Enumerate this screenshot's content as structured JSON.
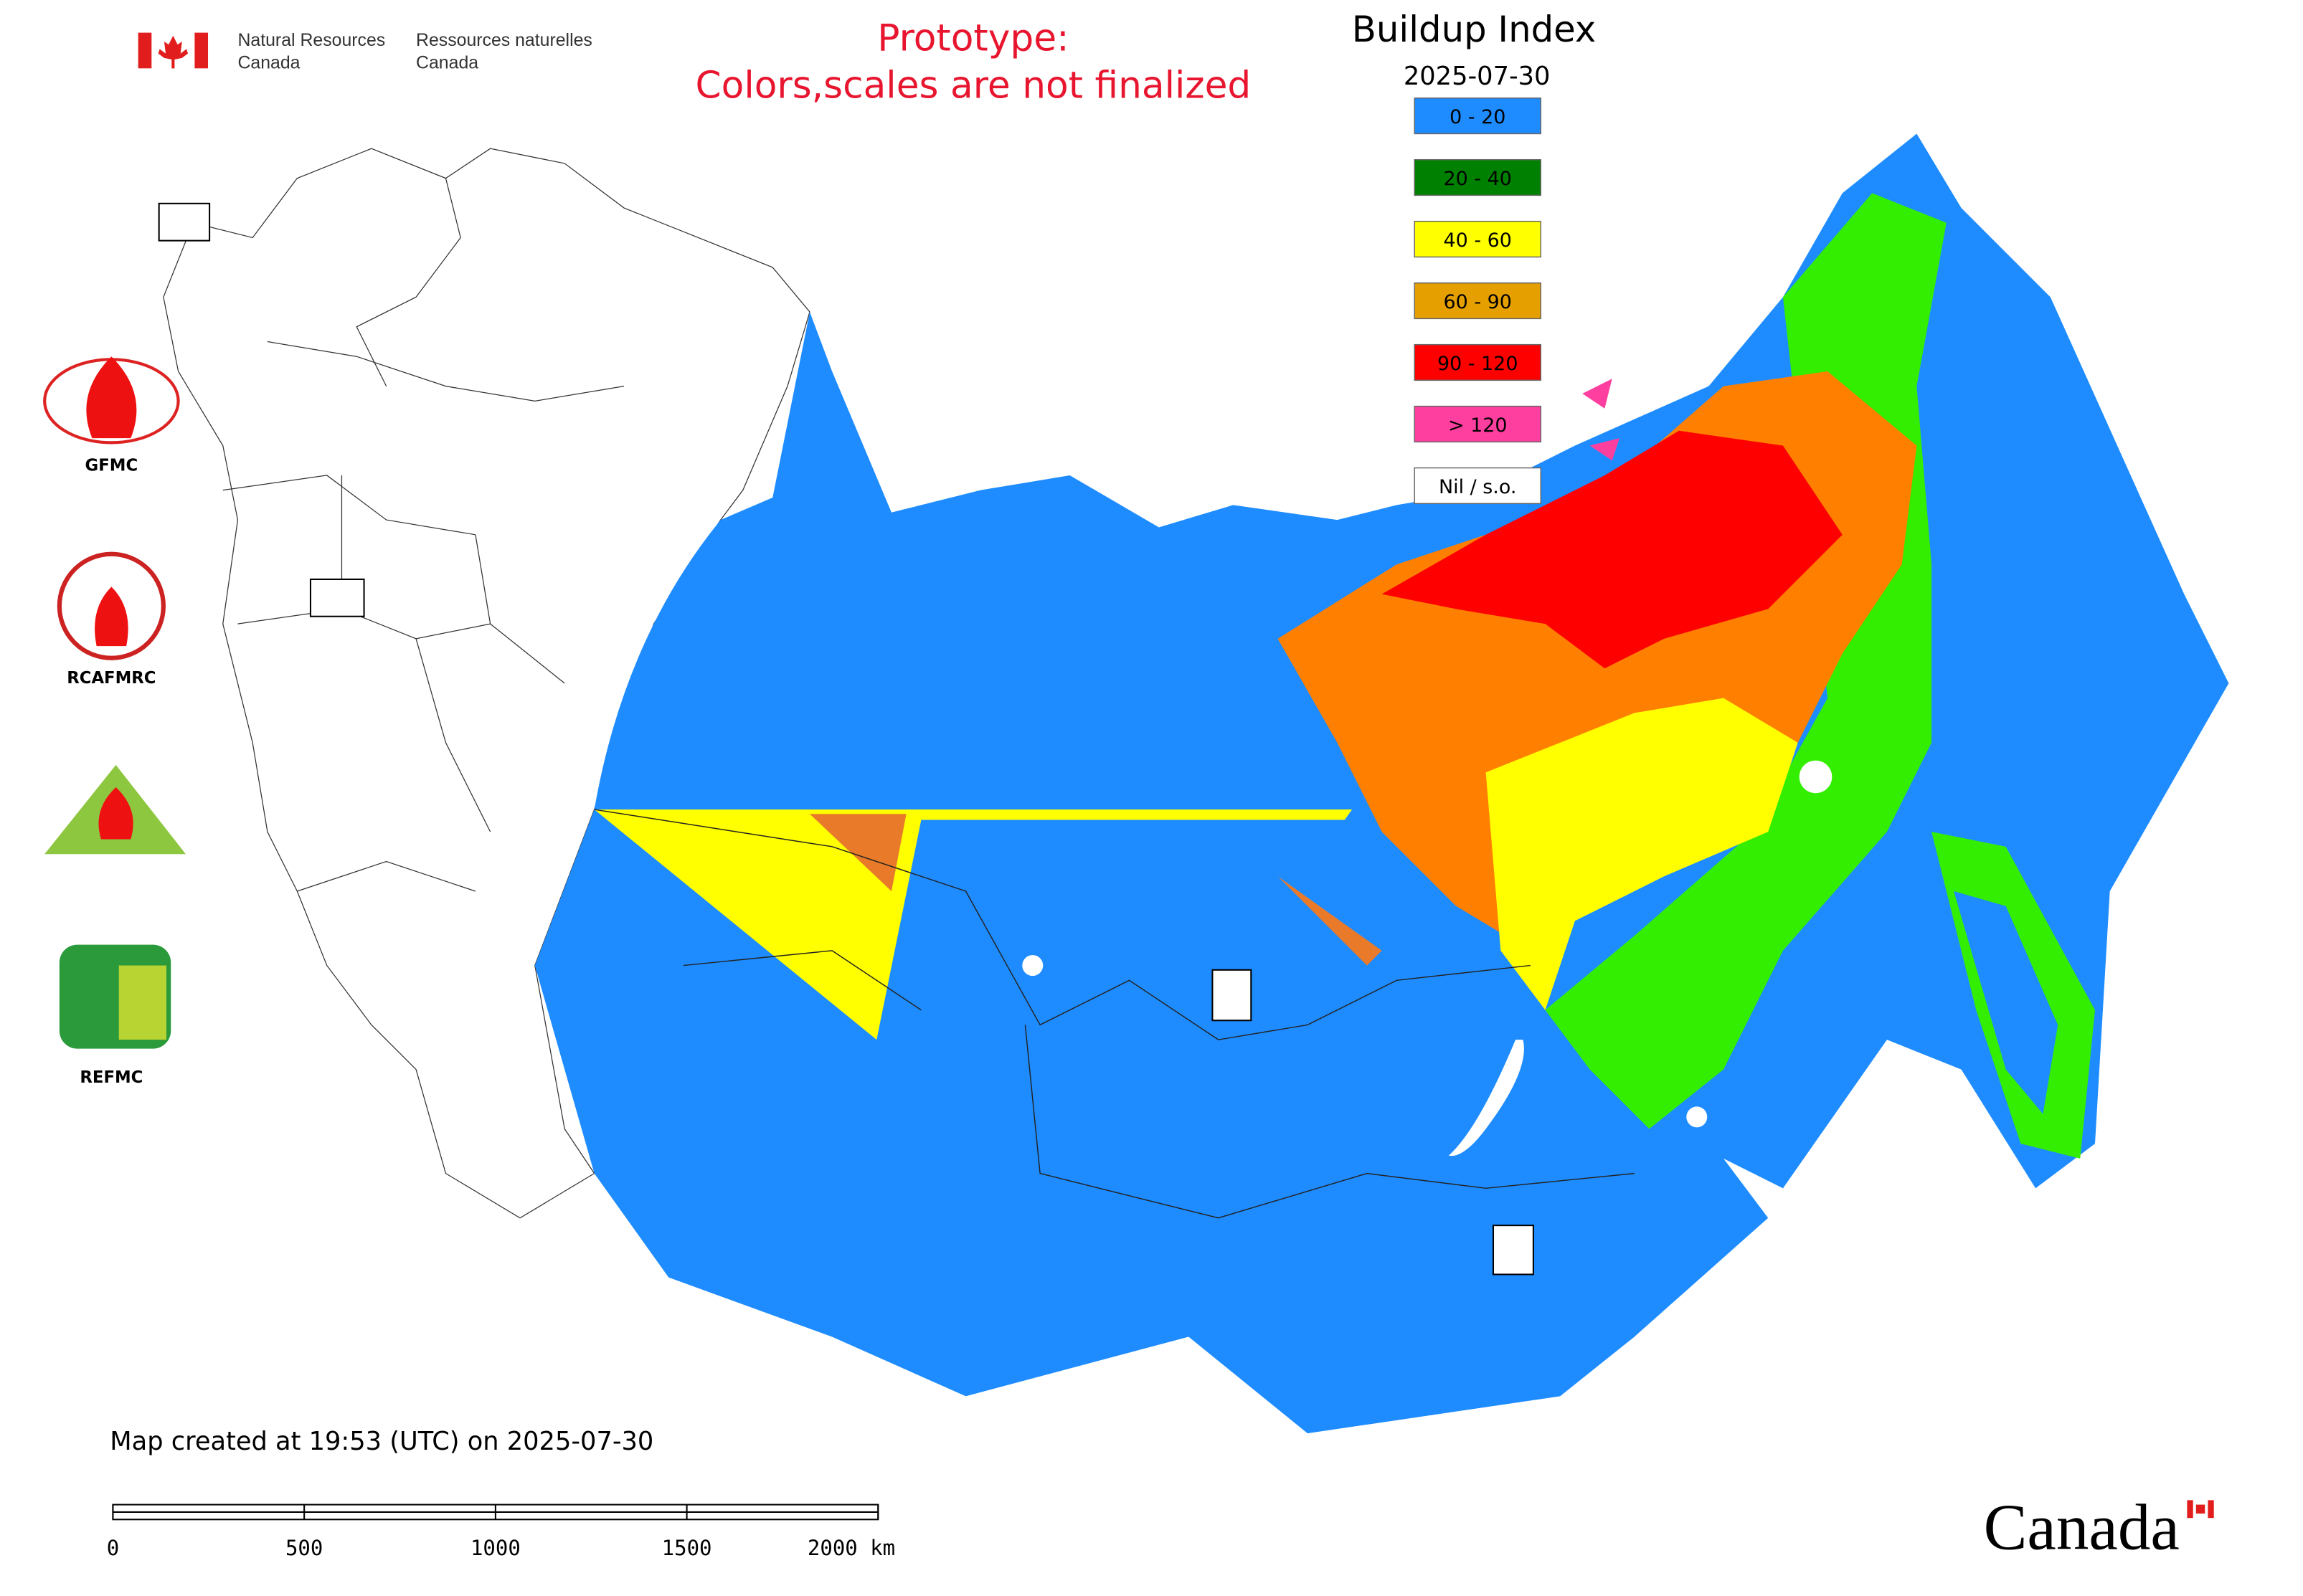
{
  "header": {
    "english": [
      "Natural Resources",
      "Canada"
    ],
    "french": [
      "Ressources naturelles",
      "Canada"
    ]
  },
  "notice": [
    "Prototype:",
    "Colors,scales are not finalized"
  ],
  "legend": {
    "title": "Buildup Index",
    "date": "2025-07-30",
    "items": [
      {
        "label": "0 - 20",
        "color": "#1e8cff"
      },
      {
        "label": "20 - 40",
        "color": "#008000"
      },
      {
        "label": "40 - 60",
        "color": "#ffff00"
      },
      {
        "label": "60 - 90",
        "color": "#e5a000"
      },
      {
        "label": "90 - 120",
        "color": "#ff0000"
      },
      {
        "label": "> 120",
        "color": "#ff3fa0"
      },
      {
        "label": "Nil / s.o.",
        "color": "#ffffff"
      }
    ]
  },
  "logos": [
    "GFMC",
    "RCAFMRC",
    "REFMC"
  ],
  "footer": {
    "created": "Map created at 19:53 (UTC) on 2025-07-30",
    "scale_labels": [
      "0",
      "500",
      "1000",
      "1500",
      "2000 km"
    ],
    "wordmark": "Canada"
  }
}
